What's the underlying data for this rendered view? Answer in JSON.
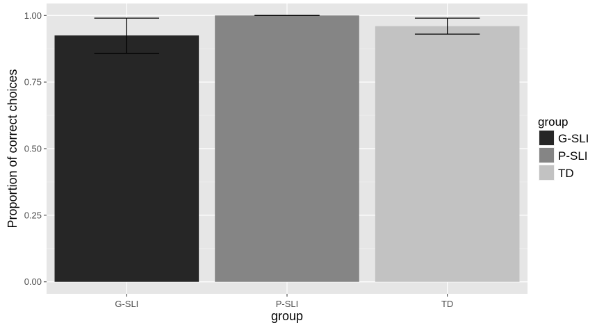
{
  "chart_data": {
    "type": "bar",
    "title": "",
    "xlabel": "group",
    "ylabel": "Proportion of correct choices",
    "categories": [
      "G-SLI",
      "P-SLI",
      "TD"
    ],
    "values": [
      0.925,
      1.0,
      0.96
    ],
    "error_low": [
      0.858,
      1.0,
      0.93
    ],
    "error_high": [
      0.99,
      1.0,
      0.99
    ],
    "colors": [
      "#262626",
      "#858585",
      "#c2c2c2"
    ],
    "ylim": [
      -0.045,
      1.045
    ],
    "yticks": [
      0.0,
      0.25,
      0.5,
      0.75,
      1.0
    ],
    "ytick_labels": [
      "0.00",
      "0.25",
      "0.50",
      "0.75",
      "1.00"
    ],
    "grid": true,
    "legend": {
      "title": "group",
      "placement": "right",
      "entries": [
        "G-SLI",
        "P-SLI",
        "TD"
      ]
    }
  }
}
